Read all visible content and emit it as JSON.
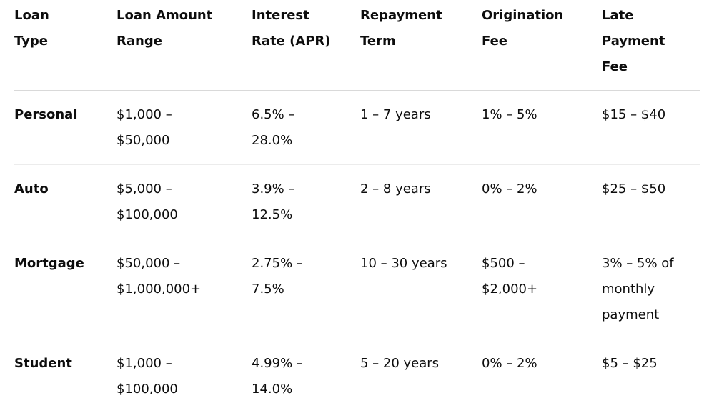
{
  "table": {
    "headers": [
      "Loan\nType",
      "Loan Amount\nRange",
      "Interest\nRate (APR)",
      "Repayment\nTerm",
      "Origination\nFee",
      "Late Payment\nFee"
    ],
    "rows": [
      [
        "Personal",
        "$1,000 –\n$50,000",
        "6.5% –\n28.0%",
        "1 – 7 years",
        "1% – 5%",
        "$15 – $40"
      ],
      [
        "Auto",
        "$5,000 –\n$100,000",
        "3.9% –\n12.5%",
        "2 – 8 years",
        "0% – 2%",
        "$25 – $50"
      ],
      [
        "Mortgage",
        "$50,000 –\n$1,000,000+",
        "2.75% –\n7.5%",
        "10 – 30 years",
        "$500 –\n$2,000+",
        "3% – 5% of\nmonthly\npayment"
      ],
      [
        "Student",
        "$1,000 –\n$100,000",
        "4.99% –\n14.0%",
        "5 – 20 years",
        "0% – 2%",
        "$5 – $25"
      ]
    ]
  }
}
